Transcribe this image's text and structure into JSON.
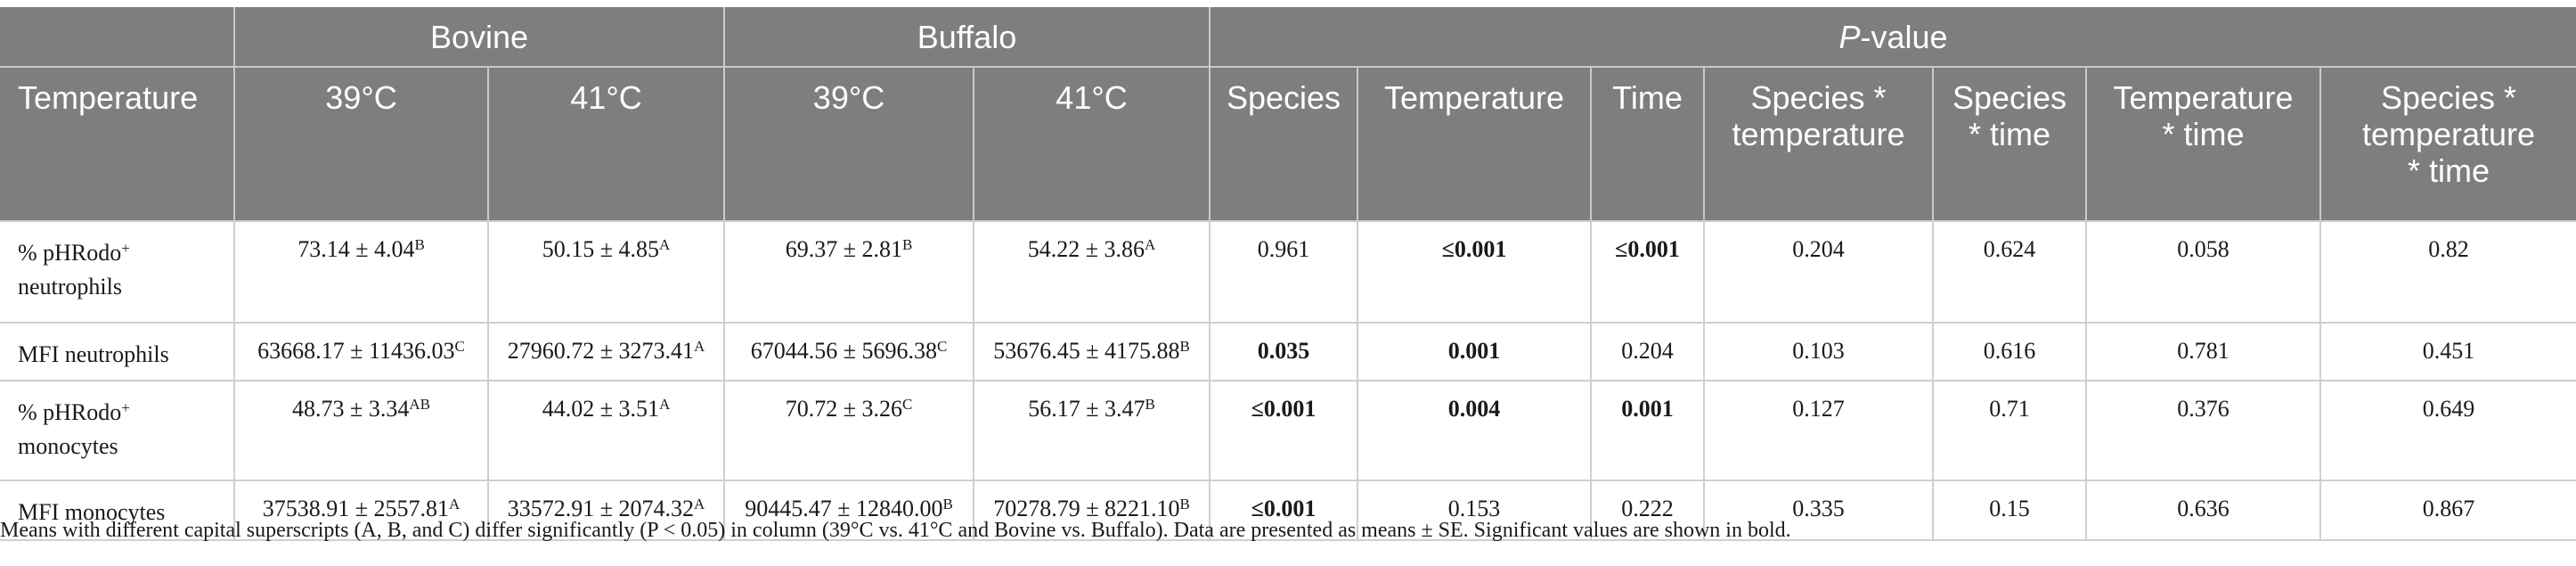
{
  "header": {
    "groups": [
      "Bovine",
      "Buffalo"
    ],
    "pvalue_prefix": "P",
    "pvalue_suffix": "-value",
    "columns": [
      "Temperature",
      "39°C",
      "41°C",
      "39°C",
      "41°C",
      "Species",
      "Temperature",
      "Time"
    ],
    "col_sp_temp": [
      "Species *",
      "temperature"
    ],
    "col_sp_time": [
      "Species",
      "* time"
    ],
    "col_temp_time": [
      "Temperature",
      "* time"
    ],
    "col_sp_temp_time": [
      "Species *",
      "temperature",
      "* time"
    ]
  },
  "rows": [
    {
      "label_lines": [
        "% pHRodo",
        "neutrophils"
      ],
      "label_sup": "+",
      "values": [
        {
          "v": "73.14 ± 4.04",
          "s": "B"
        },
        {
          "v": "50.15 ± 4.85",
          "s": "A"
        },
        {
          "v": "69.37 ± 2.81",
          "s": "B"
        },
        {
          "v": "54.22 ± 3.86",
          "s": "A"
        }
      ],
      "pvalues": [
        "0.961",
        "≤0.001",
        "≤0.001",
        "0.204",
        "0.624",
        "0.058",
        "0.82"
      ],
      "significant": [
        false,
        true,
        true,
        false,
        false,
        false,
        false
      ]
    },
    {
      "label": "MFI neutrophils",
      "values": [
        {
          "v": "63668.17 ± 11436.03",
          "s": "C"
        },
        {
          "v": "27960.72 ± 3273.41",
          "s": "A"
        },
        {
          "v": "67044.56 ± 5696.38",
          "s": "C"
        },
        {
          "v": "53676.45 ± 4175.88",
          "s": "B"
        }
      ],
      "pvalues": [
        "0.035",
        "0.001",
        "0.204",
        "0.103",
        "0.616",
        "0.781",
        "0.451"
      ],
      "significant": [
        true,
        true,
        false,
        false,
        false,
        false,
        false
      ]
    },
    {
      "label_lines": [
        "% pHRodo",
        "monocytes"
      ],
      "label_sup": "+",
      "values": [
        {
          "v": "48.73 ± 3.34",
          "s": "AB"
        },
        {
          "v": "44.02 ± 3.51",
          "s": "A"
        },
        {
          "v": "70.72 ± 3.26",
          "s": "C"
        },
        {
          "v": "56.17 ± 3.47",
          "s": "B"
        }
      ],
      "pvalues": [
        "≤0.001",
        "0.004",
        "0.001",
        "0.127",
        "0.71",
        "0.376",
        "0.649"
      ],
      "significant": [
        true,
        true,
        true,
        false,
        false,
        false,
        false
      ]
    },
    {
      "label": "MFI monocytes",
      "values": [
        {
          "v": "37538.91 ± 2557.81",
          "s": "A"
        },
        {
          "v": "33572.91 ± 2074.32",
          "s": "A"
        },
        {
          "v": "90445.47 ± 12840.00",
          "s": "B"
        },
        {
          "v": "70278.79 ± 8221.10",
          "s": "B"
        }
      ],
      "pvalues": [
        "≤0.001",
        "0.153",
        "0.222",
        "0.335",
        "0.15",
        "0.636",
        "0.867"
      ],
      "significant": [
        true,
        false,
        false,
        false,
        false,
        false,
        false
      ]
    }
  ],
  "footnote": "Means with different capital superscripts (A, B, and C) differ significantly (P < 0.05) in column (39°C vs. 41°C and Bovine vs. Buffalo). Data are presented as means ± SE. Significant values are shown in bold."
}
